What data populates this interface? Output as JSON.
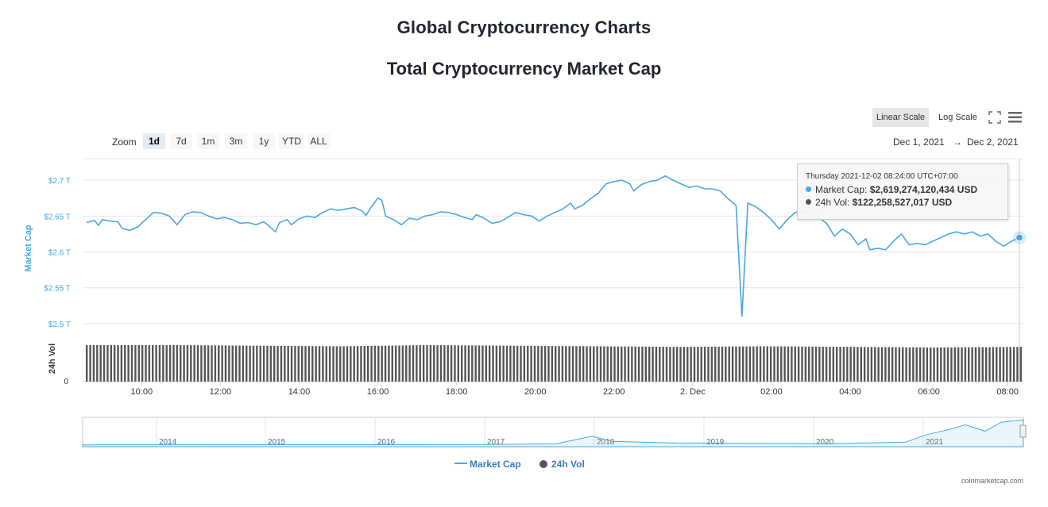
{
  "page": {
    "heading": "Global Cryptocurrency Charts",
    "chart_title": "Total Cryptocurrency Market Cap"
  },
  "toolbar": {
    "scales": [
      "Linear Scale",
      "Log Scale"
    ],
    "active_scale": "Linear Scale",
    "zoom_label": "Zoom",
    "zoom_buttons": [
      "1d",
      "7d",
      "1m",
      "3m",
      "1y",
      "YTD",
      "ALL"
    ],
    "active_zoom": "1d",
    "range_from": "Dec 1, 2021",
    "range_arrow": "→",
    "range_to": "Dec 2, 2021"
  },
  "tooltip": {
    "date": "Thursday 2021-12-02 08:24:00 UTC+07:00",
    "market_cap_label": "Market Cap:",
    "market_cap_value": "$2,619,274,120,434 USD",
    "vol_label": "24h Vol:",
    "vol_value": "$122,258,527,017 USD"
  },
  "legend": {
    "market_cap": "Market Cap",
    "vol": "24h Vol"
  },
  "credit": "coinmarketcap.com",
  "colors": {
    "market_cap": "#4aa8de",
    "vol": "#555555",
    "axis_text": "#4aa8de"
  },
  "chart_data": {
    "type": "line",
    "title": "Total Cryptocurrency Market Cap",
    "y_axis": {
      "label": "Market Cap",
      "ticks": [
        "$2.5 T",
        "$2.55 T",
        "$2.6 T",
        "$2.65 T",
        "$2.7 T"
      ],
      "tick_values": [
        2.5,
        2.55,
        2.6,
        2.65,
        2.7
      ],
      "range": [
        2.48,
        2.73
      ],
      "unit": "trillion USD"
    },
    "vol_axis": {
      "label": "24h Vol",
      "ticks": [
        "0"
      ]
    },
    "x_axis": {
      "ticks": [
        "10:00",
        "12:00",
        "14:00",
        "16:00",
        "18:00",
        "20:00",
        "22:00",
        "2. Dec",
        "02:00",
        "04:00",
        "06:00",
        "08:00"
      ],
      "range": [
        8.5,
        32.4
      ]
    },
    "series": [
      {
        "name": "Market Cap",
        "type": "line",
        "points": [
          [
            8.6,
            2.641
          ],
          [
            8.8,
            2.644
          ],
          [
            8.9,
            2.637
          ],
          [
            9.0,
            2.645
          ],
          [
            9.2,
            2.643
          ],
          [
            9.4,
            2.642
          ],
          [
            9.5,
            2.633
          ],
          [
            9.7,
            2.63
          ],
          [
            9.9,
            2.635
          ],
          [
            10.1,
            2.645
          ],
          [
            10.3,
            2.655
          ],
          [
            10.5,
            2.654
          ],
          [
            10.7,
            2.65
          ],
          [
            10.9,
            2.638
          ],
          [
            11.1,
            2.652
          ],
          [
            11.3,
            2.656
          ],
          [
            11.5,
            2.655
          ],
          [
            11.7,
            2.65
          ],
          [
            11.9,
            2.646
          ],
          [
            12.1,
            2.648
          ],
          [
            12.3,
            2.645
          ],
          [
            12.5,
            2.64
          ],
          [
            12.7,
            2.641
          ],
          [
            12.9,
            2.638
          ],
          [
            13.1,
            2.642
          ],
          [
            13.2,
            2.638
          ],
          [
            13.4,
            2.628
          ],
          [
            13.5,
            2.641
          ],
          [
            13.7,
            2.645
          ],
          [
            13.8,
            2.638
          ],
          [
            14.0,
            2.646
          ],
          [
            14.2,
            2.65
          ],
          [
            14.4,
            2.648
          ],
          [
            14.6,
            2.655
          ],
          [
            14.8,
            2.66
          ],
          [
            15.0,
            2.658
          ],
          [
            15.2,
            2.66
          ],
          [
            15.4,
            2.662
          ],
          [
            15.6,
            2.657
          ],
          [
            15.7,
            2.651
          ],
          [
            15.8,
            2.66
          ],
          [
            16.0,
            2.675
          ],
          [
            16.1,
            2.672
          ],
          [
            16.2,
            2.65
          ],
          [
            16.4,
            2.645
          ],
          [
            16.6,
            2.638
          ],
          [
            16.8,
            2.647
          ],
          [
            17.0,
            2.645
          ],
          [
            17.2,
            2.65
          ],
          [
            17.4,
            2.652
          ],
          [
            17.6,
            2.656
          ],
          [
            17.8,
            2.655
          ],
          [
            18.0,
            2.652
          ],
          [
            18.2,
            2.648
          ],
          [
            18.4,
            2.645
          ],
          [
            18.5,
            2.652
          ],
          [
            18.7,
            2.647
          ],
          [
            18.9,
            2.64
          ],
          [
            19.1,
            2.642
          ],
          [
            19.3,
            2.648
          ],
          [
            19.5,
            2.655
          ],
          [
            19.7,
            2.652
          ],
          [
            19.9,
            2.65
          ],
          [
            20.1,
            2.643
          ],
          [
            20.3,
            2.65
          ],
          [
            20.5,
            2.655
          ],
          [
            20.7,
            2.66
          ],
          [
            20.9,
            2.668
          ],
          [
            21.0,
            2.66
          ],
          [
            21.2,
            2.665
          ],
          [
            21.4,
            2.674
          ],
          [
            21.6,
            2.682
          ],
          [
            21.8,
            2.695
          ],
          [
            22.0,
            2.698
          ],
          [
            22.2,
            2.7
          ],
          [
            22.4,
            2.695
          ],
          [
            22.5,
            2.685
          ],
          [
            22.7,
            2.694
          ],
          [
            22.9,
            2.698
          ],
          [
            23.1,
            2.7
          ],
          [
            23.3,
            2.706
          ],
          [
            23.5,
            2.7
          ],
          [
            23.7,
            2.695
          ],
          [
            23.9,
            2.69
          ],
          [
            24.1,
            2.692
          ],
          [
            24.3,
            2.688
          ],
          [
            24.5,
            2.688
          ],
          [
            24.7,
            2.685
          ],
          [
            24.9,
            2.674
          ],
          [
            25.1,
            2.665
          ],
          [
            25.25,
            2.51
          ],
          [
            25.4,
            2.668
          ],
          [
            25.6,
            2.663
          ],
          [
            25.8,
            2.655
          ],
          [
            26.0,
            2.645
          ],
          [
            26.2,
            2.632
          ],
          [
            26.4,
            2.645
          ],
          [
            26.6,
            2.655
          ],
          [
            26.8,
            2.657
          ],
          [
            27.0,
            2.655
          ],
          [
            27.2,
            2.648
          ],
          [
            27.4,
            2.64
          ],
          [
            27.6,
            2.622
          ],
          [
            27.8,
            2.632
          ],
          [
            28.0,
            2.625
          ],
          [
            28.2,
            2.61
          ],
          [
            28.4,
            2.618
          ],
          [
            28.5,
            2.603
          ],
          [
            28.7,
            2.605
          ],
          [
            28.9,
            2.603
          ],
          [
            29.1,
            2.615
          ],
          [
            29.3,
            2.625
          ],
          [
            29.5,
            2.61
          ],
          [
            29.7,
            2.612
          ],
          [
            29.9,
            2.61
          ],
          [
            30.1,
            2.615
          ],
          [
            30.3,
            2.62
          ],
          [
            30.5,
            2.625
          ],
          [
            30.7,
            2.628
          ],
          [
            30.9,
            2.625
          ],
          [
            31.1,
            2.628
          ],
          [
            31.3,
            2.622
          ],
          [
            31.5,
            2.625
          ],
          [
            31.7,
            2.615
          ],
          [
            31.9,
            2.608
          ],
          [
            32.1,
            2.615
          ],
          [
            32.3,
            2.62
          ]
        ]
      },
      {
        "name": "24h Vol",
        "type": "bar",
        "relative_levels": [
          0.62,
          0.62,
          0.61,
          0.6,
          0.62,
          0.61,
          0.6,
          0.59,
          0.6,
          0.59,
          0.58,
          0.59
        ]
      }
    ],
    "navigator": {
      "years": [
        "2014",
        "2015",
        "2016",
        "2017",
        "2018",
        "2019",
        "2020",
        "2021"
      ]
    }
  }
}
